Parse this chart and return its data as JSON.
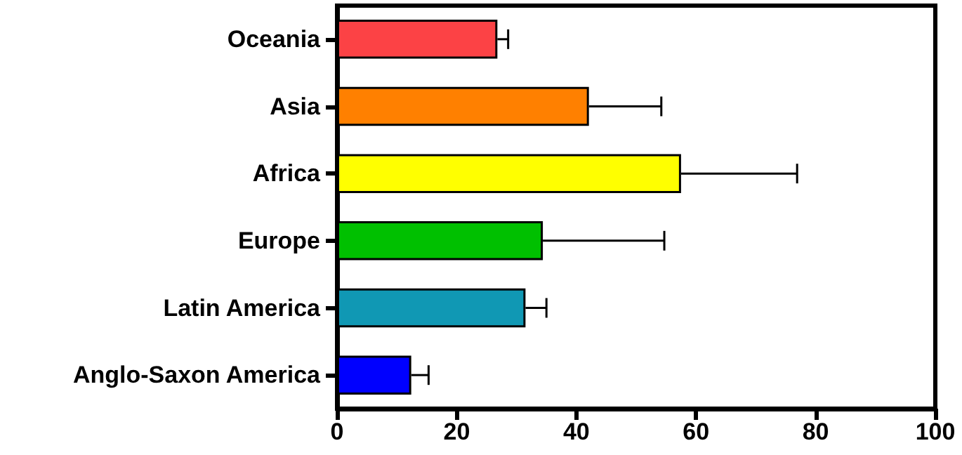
{
  "chart_data": {
    "type": "bar",
    "orientation": "horizontal",
    "categories": [
      "Oceania",
      "Asia",
      "Africa",
      "Europe",
      "Latin America",
      "Anglo-Saxon America"
    ],
    "values": [
      26.8,
      42.1,
      57.5,
      34.4,
      31.5,
      12.4
    ],
    "colors": [
      "#fc4245",
      "#ff8000",
      "#ffff00",
      "#00c000",
      "#1098b4",
      "#0000ff"
    ],
    "errors": [
      [
        26.8,
        28.6
      ],
      [
        42.1,
        54.2
      ],
      [
        57.5,
        76.9
      ],
      [
        34.4,
        54.7
      ],
      [
        31.5,
        35.0
      ],
      [
        12.4,
        15.3
      ]
    ],
    "xlim": [
      0,
      100
    ],
    "xticks": [
      0,
      20,
      40,
      60,
      80,
      100
    ],
    "grid": false
  }
}
